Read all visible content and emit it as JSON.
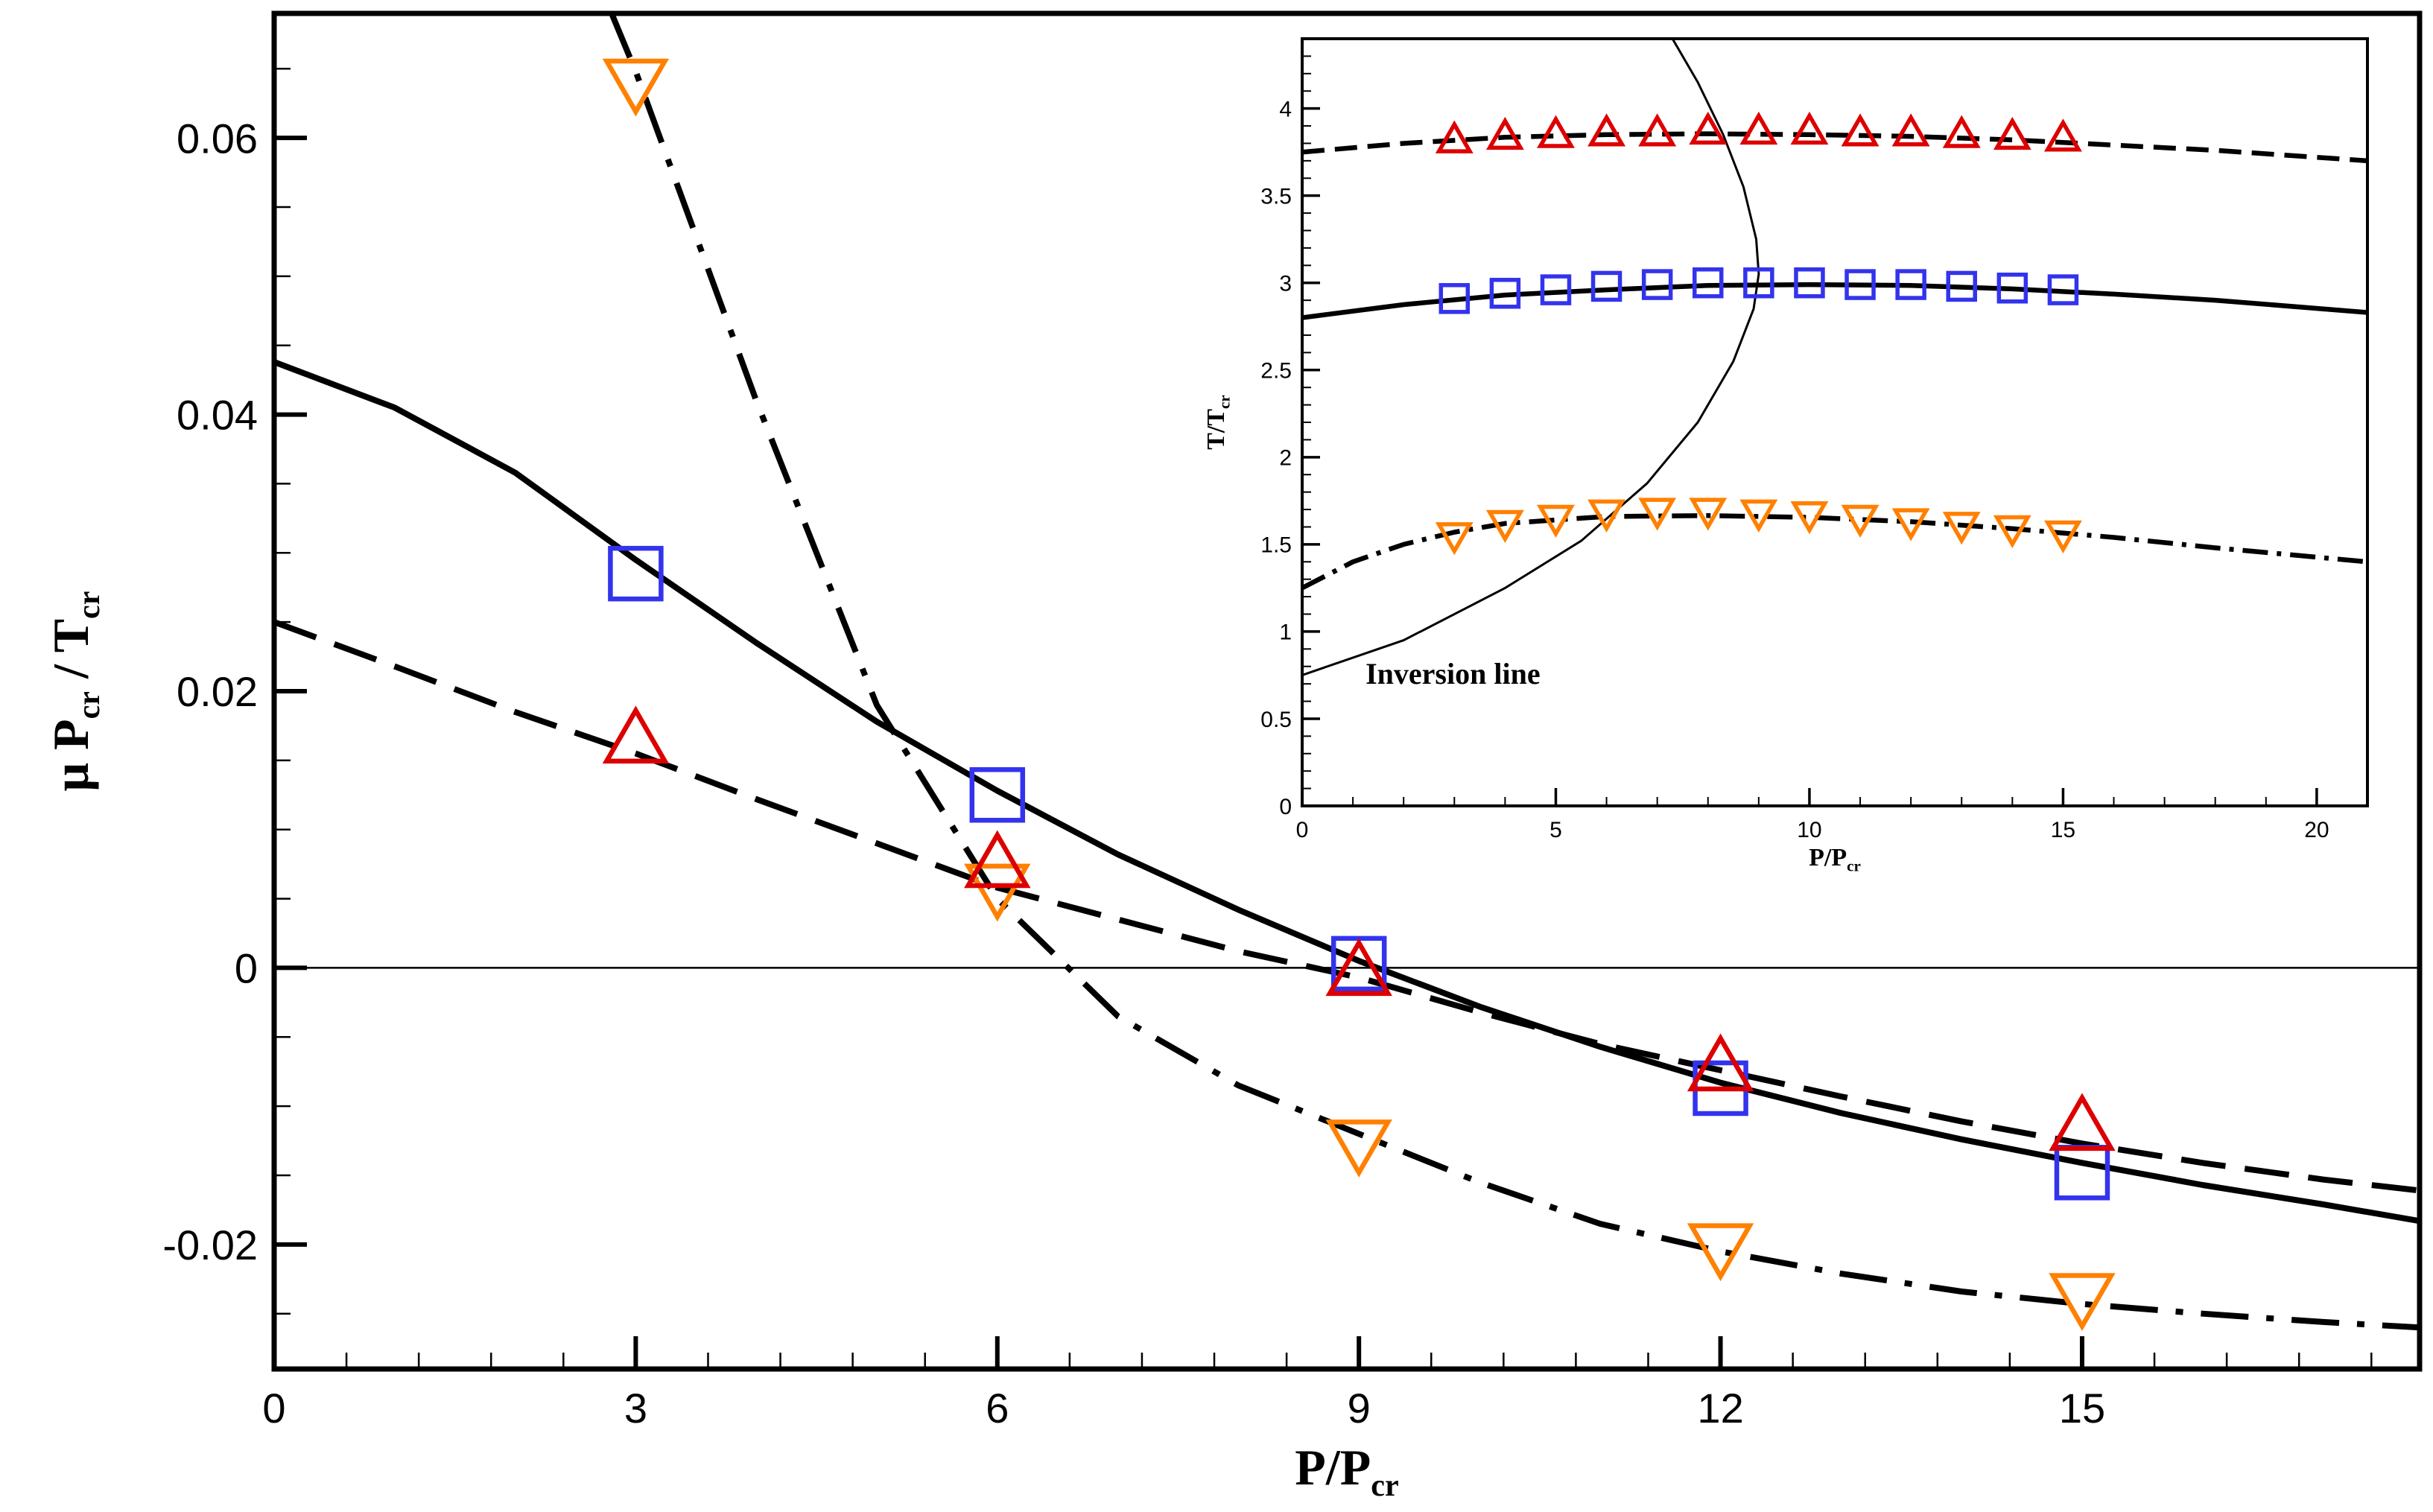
{
  "chart_data": [
    {
      "type": "line",
      "xlabel": {
        "base": "P/P",
        "sub": "cr"
      },
      "ylabel": {
        "pre": "μ P",
        "sub1": "cr",
        "mid": " / T",
        "sub2": "cr"
      },
      "xlim": [
        0,
        17.8
      ],
      "ylim": [
        -0.029,
        0.069
      ],
      "x_ticks": [
        0,
        3,
        6,
        9,
        12,
        15
      ],
      "x_tick_labels": [
        "0",
        "3",
        "6",
        "9",
        "12",
        "15"
      ],
      "y_ticks": [
        -0.02,
        0,
        0.02,
        0.04,
        0.06
      ],
      "y_tick_labels": [
        "-0.02",
        "0",
        "0.02",
        "0.04",
        "0.06"
      ],
      "zero_line": 0,
      "series": [
        {
          "style": "dashdot",
          "color": "#000000",
          "x": [
            2.8,
            3,
            4,
            5,
            6,
            7,
            8,
            9,
            10,
            11,
            12,
            13,
            14,
            15,
            16,
            17,
            17.8
          ],
          "y": [
            0.069,
            0.0648,
            0.041,
            0.019,
            0.005,
            -0.0035,
            -0.0085,
            -0.012,
            -0.0155,
            -0.0185,
            -0.0205,
            -0.0221,
            -0.0234,
            -0.0243,
            -0.025,
            -0.0256,
            -0.026
          ]
        },
        {
          "style": "solid",
          "color": "#000000",
          "x": [
            0,
            1,
            2,
            3,
            4,
            5,
            6,
            7,
            8,
            9,
            10,
            11,
            12,
            13,
            14,
            15,
            16,
            17,
            17.8
          ],
          "y": [
            0.0438,
            0.0405,
            0.0358,
            0.0295,
            0.0235,
            0.0178,
            0.0128,
            0.0082,
            0.0042,
            0.0005,
            -0.0028,
            -0.0057,
            -0.0083,
            -0.0105,
            -0.0124,
            -0.0141,
            -0.0157,
            -0.0171,
            -0.0183
          ]
        },
        {
          "style": "dashed",
          "color": "#000000",
          "x": [
            0,
            1,
            2,
            3,
            4,
            5,
            6,
            7,
            8,
            9,
            10,
            11,
            12,
            13,
            14,
            15,
            16,
            17,
            17.8
          ],
          "y": [
            0.025,
            0.0218,
            0.0185,
            0.0155,
            0.0122,
            0.009,
            0.0058,
            0.0035,
            0.0012,
            -0.0007,
            -0.0032,
            -0.0055,
            -0.0074,
            -0.0093,
            -0.0111,
            -0.0127,
            -0.0141,
            -0.0153,
            -0.0161
          ]
        }
      ],
      "markers": [
        {
          "shape": "triangle-down",
          "color": "#ff8000",
          "x": [
            3,
            6,
            9,
            12,
            15
          ],
          "y": [
            0.064,
            0.0058,
            -0.0127,
            -0.0202,
            -0.0238
          ]
        },
        {
          "shape": "square",
          "color": "#3333ee",
          "x": [
            3,
            6,
            9,
            12,
            15
          ],
          "y": [
            0.0285,
            0.0125,
            0.0003,
            -0.0087,
            -0.0148
          ]
        },
        {
          "shape": "triangle-up",
          "color": "#dd0000",
          "x": [
            3,
            6,
            9,
            12,
            15
          ],
          "y": [
            0.0165,
            0.0075,
            -0.0003,
            -0.0072,
            -0.0115
          ]
        }
      ]
    },
    {
      "type": "line",
      "xlabel": {
        "base": "P/P",
        "sub": "cr"
      },
      "ylabel": {
        "base": "T/T",
        "sub": "cr"
      },
      "xlim": [
        0,
        21
      ],
      "ylim": [
        0,
        4.4
      ],
      "x_ticks": [
        0,
        5,
        10,
        15,
        20
      ],
      "x_tick_labels": [
        "0",
        "5",
        "10",
        "15",
        "20"
      ],
      "y_ticks": [
        0,
        0.5,
        1,
        1.5,
        2,
        2.5,
        3,
        3.5,
        4
      ],
      "y_tick_labels": [
        "0",
        "0.5",
        "1",
        "1.5",
        "2",
        "2.5",
        "3",
        "3.5",
        "4"
      ],
      "annotation": "Inversion line",
      "inversion_line": {
        "x": [
          0,
          2,
          4,
          5.5,
          6.8,
          7.8,
          8.5,
          8.9,
          9.0,
          8.95,
          8.7,
          8.3,
          7.8,
          7.2,
          7.4
        ],
        "y": [
          0.75,
          0.95,
          1.25,
          1.52,
          1.85,
          2.2,
          2.55,
          2.85,
          3.05,
          3.25,
          3.55,
          3.85,
          4.15,
          4.45,
          4.45
        ]
      },
      "series": [
        {
          "style": "dashed",
          "color": "#000000",
          "x": [
            0,
            2,
            4,
            6,
            8,
            10,
            12,
            14,
            16,
            18,
            21
          ],
          "y": [
            3.75,
            3.8,
            3.835,
            3.85,
            3.855,
            3.85,
            3.84,
            3.82,
            3.79,
            3.76,
            3.7
          ]
        },
        {
          "style": "solid",
          "color": "#000000",
          "x": [
            0,
            2,
            4,
            6,
            8,
            10,
            12,
            14,
            16,
            18,
            21
          ],
          "y": [
            2.8,
            2.875,
            2.93,
            2.96,
            2.985,
            2.99,
            2.985,
            2.965,
            2.935,
            2.9,
            2.83
          ]
        },
        {
          "style": "dashdot",
          "color": "#000000",
          "x": [
            0,
            1,
            2,
            3,
            4,
            6,
            8,
            10,
            12,
            14,
            16,
            18,
            21
          ],
          "y": [
            1.25,
            1.4,
            1.5,
            1.57,
            1.62,
            1.66,
            1.665,
            1.655,
            1.63,
            1.59,
            1.54,
            1.48,
            1.4
          ]
        }
      ],
      "markers": [
        {
          "shape": "triangle-up",
          "color": "#dd0000",
          "x": [
            3,
            4,
            5,
            6,
            7,
            8,
            9,
            10,
            11,
            12,
            13,
            14,
            15
          ],
          "y": [
            3.82,
            3.84,
            3.85,
            3.86,
            3.86,
            3.87,
            3.87,
            3.87,
            3.86,
            3.86,
            3.85,
            3.84,
            3.83
          ]
        },
        {
          "shape": "square",
          "color": "#3333ee",
          "x": [
            3,
            4,
            5,
            6,
            7,
            8,
            9,
            10,
            11,
            12,
            13,
            14,
            15
          ],
          "y": [
            2.91,
            2.94,
            2.96,
            2.98,
            2.99,
            3.0,
            3.0,
            3.0,
            2.99,
            2.99,
            2.98,
            2.97,
            2.96
          ]
        },
        {
          "shape": "triangle-down",
          "color": "#ff8000",
          "x": [
            3,
            4,
            5,
            6,
            7,
            8,
            9,
            10,
            11,
            12,
            13,
            14,
            15
          ],
          "y": [
            1.55,
            1.62,
            1.65,
            1.68,
            1.69,
            1.69,
            1.68,
            1.67,
            1.65,
            1.63,
            1.61,
            1.59,
            1.56
          ]
        }
      ]
    }
  ]
}
